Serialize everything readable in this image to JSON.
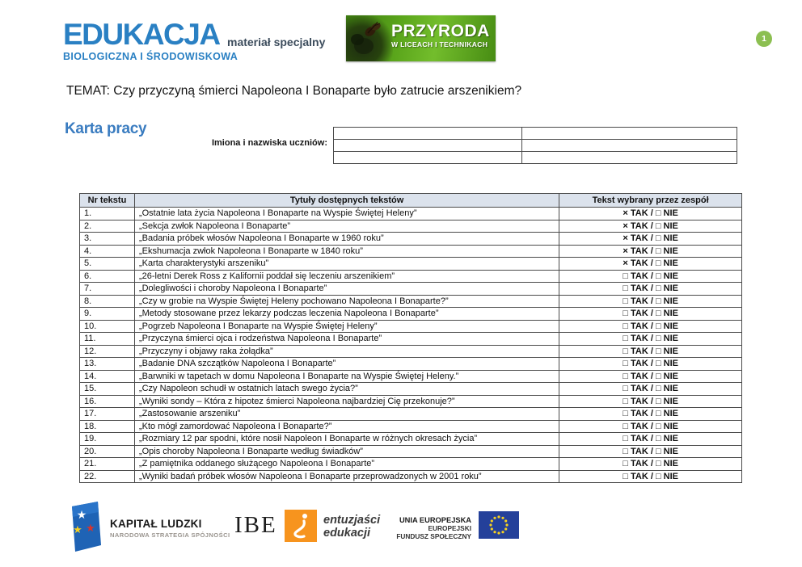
{
  "page": {
    "number": "1",
    "badge_color": "#8cbf51"
  },
  "header": {
    "edukacja_logo": {
      "title": "EDUKACJA",
      "subtitle": "BIOLOGICZNA I ŚRODOWISKOWA",
      "color": "#2a80c3"
    },
    "material_label": "materiał specjalny",
    "przyroda_logo": {
      "title": "PRZYRODA",
      "subtitle": "W LICEACH I TECHNIKACH",
      "bg_color": "#5aa51b"
    }
  },
  "topic": "TEMAT: Czy przyczyną śmierci Napoleona I Bonaparte było zatrucie arszenikiem?",
  "worksheet": {
    "title": "Karta pracy",
    "names_label": "Imiona i nazwiska uczniów:",
    "names_rows": 3,
    "names_cols": 2
  },
  "texts_table": {
    "headers": [
      "Nr tekstu",
      "Tytuły dostępnych tekstów",
      "Tekst wybrany przez zespół"
    ],
    "yes_label": "TAK",
    "no_label": "NIE",
    "checked_symbol": "×",
    "unchecked_symbol": "□",
    "rows": [
      {
        "nr": "1.",
        "title": "„Ostatnie lata życia Napoleona I Bonaparte na Wyspie Świętej Heleny”",
        "tak_checked": true,
        "nie_checked": false
      },
      {
        "nr": "2.",
        "title": "„Sekcja zwłok Napoleona I Bonaparte”",
        "tak_checked": true,
        "nie_checked": false
      },
      {
        "nr": "3.",
        "title": "„Badania próbek włosów Napoleona I Bonaparte w 1960 roku”",
        "tak_checked": true,
        "nie_checked": false
      },
      {
        "nr": "4.",
        "title": "„Ekshumacja zwłok Napoleona I Bonaparte w 1840 roku”",
        "tak_checked": true,
        "nie_checked": false
      },
      {
        "nr": "5.",
        "title": "„Karta charakterystyki arszeniku”",
        "tak_checked": true,
        "nie_checked": false
      },
      {
        "nr": "6.",
        "title": "„26-letni Derek Ross z Kalifornii poddał się leczeniu arszenikiem”",
        "tak_checked": false,
        "nie_checked": false
      },
      {
        "nr": "7.",
        "title": "„Dolegliwości i choroby Napoleona I Bonaparte”",
        "tak_checked": false,
        "nie_checked": false
      },
      {
        "nr": "8.",
        "title": "„Czy w grobie na Wyspie Świętej Heleny pochowano Napoleona I Bonaparte?”",
        "tak_checked": false,
        "nie_checked": false
      },
      {
        "nr": "9.",
        "title": "„Metody stosowane przez lekarzy podczas leczenia Napoleona I Bonaparte”",
        "tak_checked": false,
        "nie_checked": false
      },
      {
        "nr": "10.",
        "title": "„Pogrzeb Napoleona I Bonaparte na Wyspie Świętej Heleny”",
        "tak_checked": false,
        "nie_checked": false
      },
      {
        "nr": "11.",
        "title": "„Przyczyna śmierci ojca i rodzeństwa Napoleona I Bonaparte”",
        "tak_checked": false,
        "nie_checked": false
      },
      {
        "nr": "12.",
        "title": "„Przyczyny i objawy raka żołądka”",
        "tak_checked": false,
        "nie_checked": false
      },
      {
        "nr": "13.",
        "title": "„Badanie DNA szczątków Napoleona I Bonaparte”",
        "tak_checked": false,
        "nie_checked": false
      },
      {
        "nr": "14.",
        "title": "„Barwniki w tapetach w domu Napoleona I Bonaparte na Wyspie Świętej Heleny.”",
        "tak_checked": false,
        "nie_checked": false
      },
      {
        "nr": "15.",
        "title": "„Czy Napoleon schudł w ostatnich latach swego życia?”",
        "tak_checked": false,
        "nie_checked": false
      },
      {
        "nr": "16.",
        "title": "„Wyniki sondy – Która z hipotez śmierci Napoleona najbardziej Cię przekonuje?”",
        "tak_checked": false,
        "nie_checked": false
      },
      {
        "nr": "17.",
        "title": "„Zastosowanie arszeniku”",
        "tak_checked": false,
        "nie_checked": false
      },
      {
        "nr": "18.",
        "title": "„Kto mógł zamordować Napoleona I Bonaparte?”",
        "tak_checked": false,
        "nie_checked": false
      },
      {
        "nr": "19.",
        "title": "„Rozmiary 12 par spodni, które nosił Napoleon I Bonaparte w różnych okresach życia”",
        "tak_checked": false,
        "nie_checked": false
      },
      {
        "nr": "20.",
        "title": "„Opis choroby Napoleona I Bonaparte według świadków”",
        "tak_checked": false,
        "nie_checked": false
      },
      {
        "nr": "21.",
        "title": "„Z pamiętnika oddanego służącego Napoleona I Bonaparte”",
        "tak_checked": false,
        "nie_checked": false
      },
      {
        "nr": "22.",
        "title": "„Wyniki badań próbek włosów Napoleona I Bonaparte przeprowadzonych w 2001 roku”",
        "tak_checked": false,
        "nie_checked": false
      }
    ]
  },
  "footer": {
    "kapital_ludzki": {
      "title": "KAPITAŁ LUDZKI",
      "subtitle": "NARODOWA STRATEGIA SPÓJNOŚCI"
    },
    "ibe": {
      "name": "IBE",
      "tagline_line1": "entuzjaści",
      "tagline_line2": "edukacji",
      "square_color": "#f7941e"
    },
    "eu": {
      "line1": "UNIA EUROPEJSKA",
      "line2": "EUROPEJSKI",
      "line3": "FUNDUSZ SPOŁECZNY",
      "flag_color": "#24409a"
    }
  }
}
